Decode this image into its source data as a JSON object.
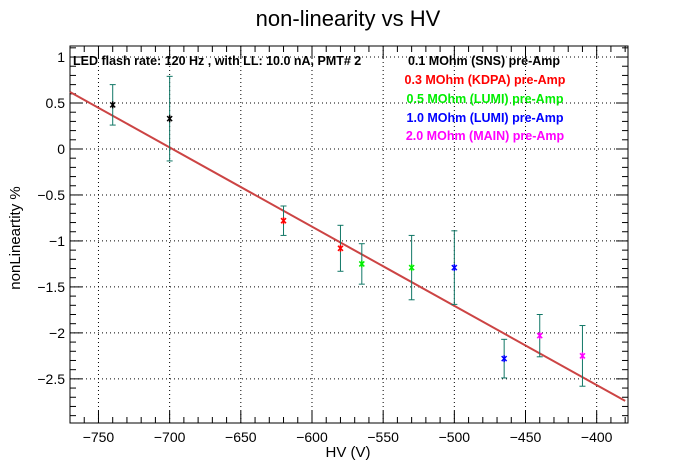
{
  "chart_data": {
    "type": "scatter",
    "title": "non-linearity vs HV",
    "xlabel": "HV (V)",
    "ylabel": "nonLineartity %",
    "xlim": [
      -770,
      -378
    ],
    "ylim": [
      -2.98,
      1.12
    ],
    "xticks": [
      -750,
      -700,
      -650,
      -600,
      -550,
      -500,
      -450,
      -400
    ],
    "xtick_labels": [
      "−750",
      "−700",
      "−650",
      "−600",
      "−550",
      "−500",
      "−450",
      "−400"
    ],
    "yticks": [
      1,
      0.5,
      0,
      -0.5,
      -1,
      -1.5,
      -2,
      -2.5
    ],
    "ytick_labels": [
      "1",
      "0.5",
      "0",
      "−0.5",
      "−1",
      "−1.5",
      "−2",
      "−2.5"
    ],
    "grid": true,
    "info_text": "LED flash rate: 120 Hz , with LL: 10.0 nA, PMT# 2",
    "series": [
      {
        "name": "0.1 MOhm (SNS) pre-Amp",
        "color": "#000000",
        "points": [
          {
            "x": -740,
            "y": 0.48,
            "err": 0.22
          },
          {
            "x": -700,
            "y": 0.33,
            "err": 0.46
          }
        ]
      },
      {
        "name": "0.3 MOhm (KDPA) pre-Amp",
        "color": "#ff0000",
        "points": [
          {
            "x": -620,
            "y": -0.78,
            "err": 0.16
          },
          {
            "x": -580,
            "y": -1.08,
            "err": 0.25
          }
        ]
      },
      {
        "name": "0.5 MOhm (LUMI) pre-Amp",
        "color": "#00ee00",
        "points": [
          {
            "x": -565,
            "y": -1.25,
            "err": 0.22
          },
          {
            "x": -530,
            "y": -1.29,
            "err": 0.35
          }
        ]
      },
      {
        "name": "1.0 MOhm (LUMI) pre-Amp",
        "color": "#0000ff",
        "points": [
          {
            "x": -500,
            "y": -1.29,
            "err": 0.4
          },
          {
            "x": -465,
            "y": -2.28,
            "err": 0.21
          }
        ]
      },
      {
        "name": "2.0 MOhm (MAIN) pre-Amp",
        "color": "#ff00ff",
        "points": [
          {
            "x": -440,
            "y": -2.03,
            "err": 0.23
          },
          {
            "x": -410,
            "y": -2.25,
            "err": 0.33
          }
        ]
      }
    ],
    "fit_line": {
      "color": "#cc4444",
      "x": [
        -770,
        -380
      ],
      "y": [
        0.62,
        -2.74
      ]
    },
    "errorbar_color": "#117766"
  }
}
